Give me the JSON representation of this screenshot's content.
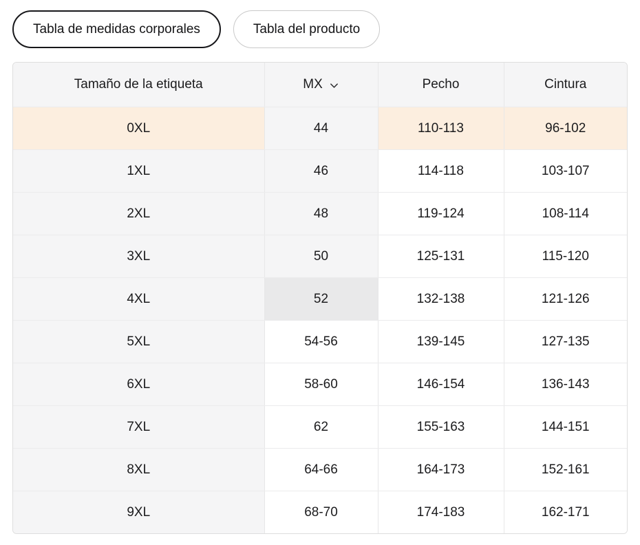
{
  "tabs": [
    {
      "label": "Tabla de medidas corporales",
      "selected": true
    },
    {
      "label": "Tabla del producto",
      "selected": false
    }
  ],
  "table": {
    "columns": [
      "Tamaño de la etiqueta",
      "MX",
      "Pecho",
      "Cintura"
    ],
    "size_system": "MX",
    "rows": [
      {
        "label": "0XL",
        "mx": "44",
        "pecho": "110-113",
        "cintura": "96-102",
        "highlighted": true,
        "mx_shaded": true,
        "mx_selected": false
      },
      {
        "label": "1XL",
        "mx": "46",
        "pecho": "114-118",
        "cintura": "103-107",
        "highlighted": false,
        "mx_shaded": true,
        "mx_selected": false
      },
      {
        "label": "2XL",
        "mx": "48",
        "pecho": "119-124",
        "cintura": "108-114",
        "highlighted": false,
        "mx_shaded": true,
        "mx_selected": false
      },
      {
        "label": "3XL",
        "mx": "50",
        "pecho": "125-131",
        "cintura": "115-120",
        "highlighted": false,
        "mx_shaded": true,
        "mx_selected": false
      },
      {
        "label": "4XL",
        "mx": "52",
        "pecho": "132-138",
        "cintura": "121-126",
        "highlighted": false,
        "mx_shaded": true,
        "mx_selected": true
      },
      {
        "label": "5XL",
        "mx": "54-56",
        "pecho": "139-145",
        "cintura": "127-135",
        "highlighted": false,
        "mx_shaded": false,
        "mx_selected": false
      },
      {
        "label": "6XL",
        "mx": "58-60",
        "pecho": "146-154",
        "cintura": "136-143",
        "highlighted": false,
        "mx_shaded": false,
        "mx_selected": false
      },
      {
        "label": "7XL",
        "mx": "62",
        "pecho": "155-163",
        "cintura": "144-151",
        "highlighted": false,
        "mx_shaded": false,
        "mx_selected": false
      },
      {
        "label": "8XL",
        "mx": "64-66",
        "pecho": "164-173",
        "cintura": "152-161",
        "highlighted": false,
        "mx_shaded": false,
        "mx_selected": false
      },
      {
        "label": "9XL",
        "mx": "68-70",
        "pecho": "174-183",
        "cintura": "162-171",
        "highlighted": false,
        "mx_shaded": false,
        "mx_selected": false
      }
    ]
  },
  "colors": {
    "highlight_row": "#fceedf",
    "shaded_cell": "#f5f5f6",
    "selected_cell": "#e9e9ea",
    "header_bg": "#f5f5f6",
    "text": "#1b1b1d",
    "selected_tab_border": "#17171a",
    "tab_border": "#c9c9c9",
    "divider": "#e7e7e8"
  }
}
